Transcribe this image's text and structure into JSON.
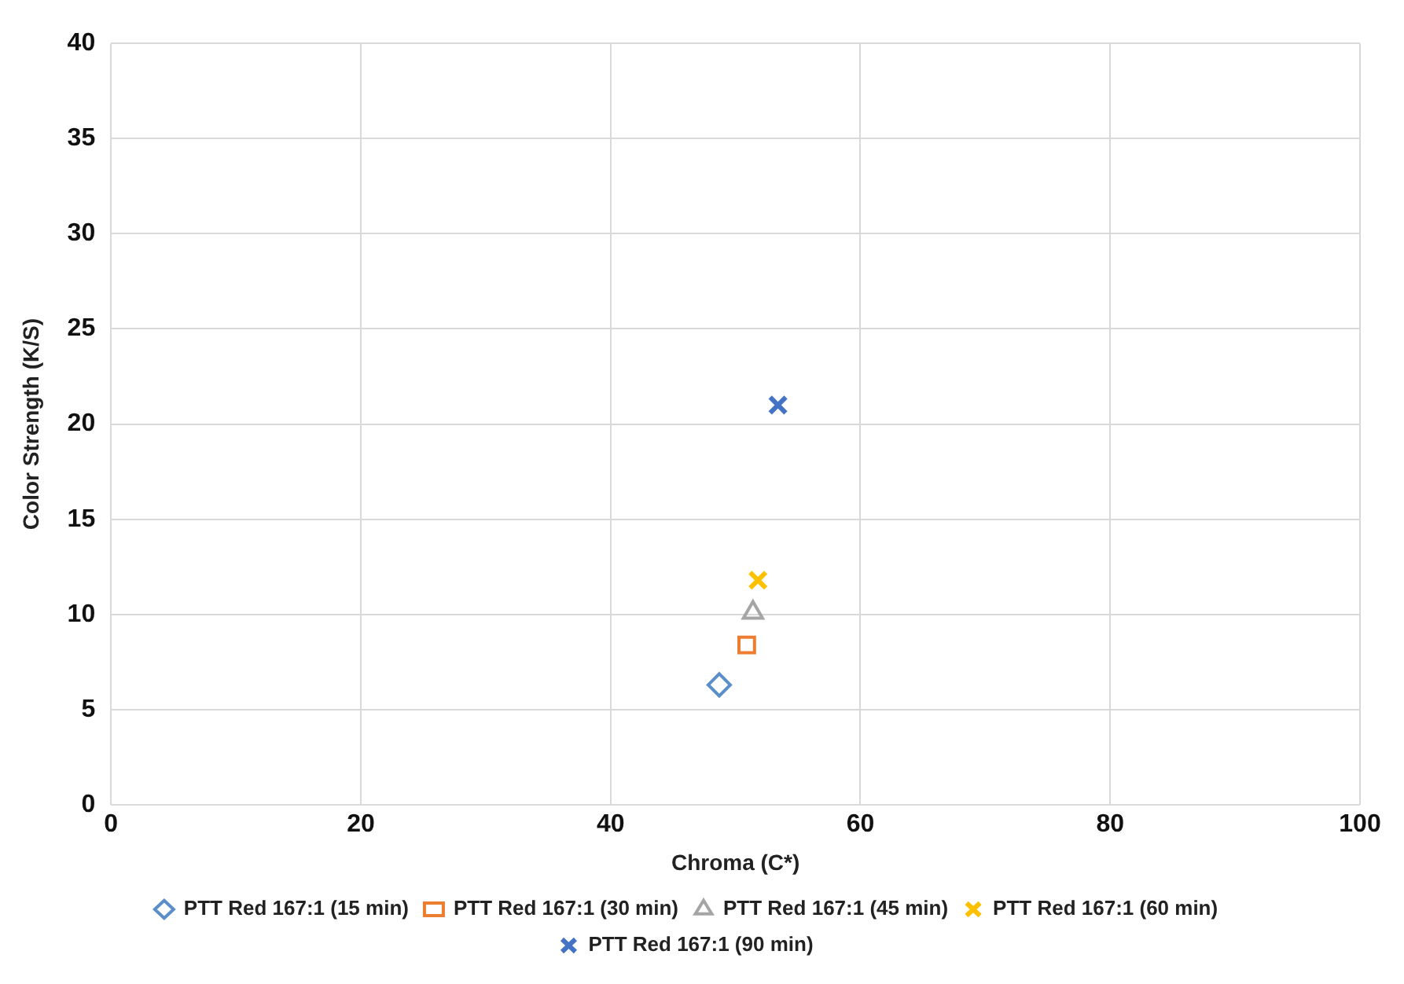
{
  "chart_data": {
    "type": "scatter",
    "xlabel": "Chroma (C*)",
    "ylabel": "Color Strength (K/S)",
    "xlim": [
      0,
      100
    ],
    "xticks": [
      0,
      20,
      40,
      60,
      80,
      100
    ],
    "ylim": [
      0,
      40
    ],
    "yticks": [
      0,
      5,
      10,
      15,
      20,
      25,
      30,
      35,
      40
    ],
    "grid": true,
    "legend": "bottom",
    "series": [
      {
        "name": "PTT Red 167:1 (15 min)",
        "color": "#5b8fc9",
        "marker": "diamond",
        "x": [
          48.7
        ],
        "values": [
          6.3
        ]
      },
      {
        "name": "PTT Red 167:1 (30 min)",
        "color": "#ed7d31",
        "marker": "square",
        "x": [
          50.9
        ],
        "values": [
          8.4
        ]
      },
      {
        "name": "PTT Red 167:1 (45 min)",
        "color": "#a5a5a5",
        "marker": "triangle",
        "x": [
          51.4
        ],
        "values": [
          10.1
        ]
      },
      {
        "name": "PTT Red 167:1 (60 min)",
        "color": "#ffc000",
        "marker": "cross",
        "x": [
          51.8
        ],
        "values": [
          11.8
        ]
      },
      {
        "name": "PTT Red 167:1 (90 min)",
        "color": "#4472c4",
        "marker": "cross",
        "x": [
          53.4
        ],
        "values": [
          21.0
        ]
      }
    ]
  }
}
